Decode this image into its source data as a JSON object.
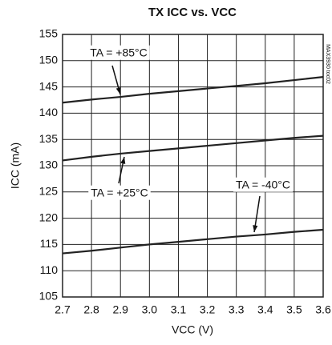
{
  "chart_data": {
    "type": "line",
    "title": "TX ICC vs. VCC",
    "x_label": "VCC (V)",
    "y_label": "ICC (mA)",
    "side_note": "MAX3930 toc02",
    "x": [
      2.7,
      2.8,
      2.9,
      3.0,
      3.1,
      3.2,
      3.3,
      3.4,
      3.5,
      3.6
    ],
    "series": [
      {
        "name": "TA = +85°C",
        "color": "#222222",
        "values": [
          142.0,
          142.6,
          143.1,
          143.7,
          144.2,
          144.7,
          145.2,
          145.7,
          146.3,
          146.9
        ]
      },
      {
        "name": "TA = +25°C",
        "color": "#222222",
        "values": [
          131.0,
          131.7,
          132.3,
          132.8,
          133.3,
          133.8,
          134.3,
          134.8,
          135.3,
          135.7
        ]
      },
      {
        "name": "TA = -40°C",
        "color": "#222222",
        "values": [
          113.3,
          113.8,
          114.4,
          115.0,
          115.5,
          116.0,
          116.5,
          116.9,
          117.4,
          117.8
        ]
      }
    ],
    "xlim": [
      2.7,
      3.6
    ],
    "xticks": [
      2.7,
      2.8,
      2.9,
      {
        "value": 3,
        "label": "3.0"
      },
      3.1,
      3.2,
      3.3,
      3.4,
      3.5,
      3.6
    ],
    "ylim": [
      105,
      155
    ],
    "yticks": [
      105,
      110,
      115,
      120,
      125,
      130,
      135,
      140,
      145,
      150,
      155
    ],
    "grid": true
  }
}
